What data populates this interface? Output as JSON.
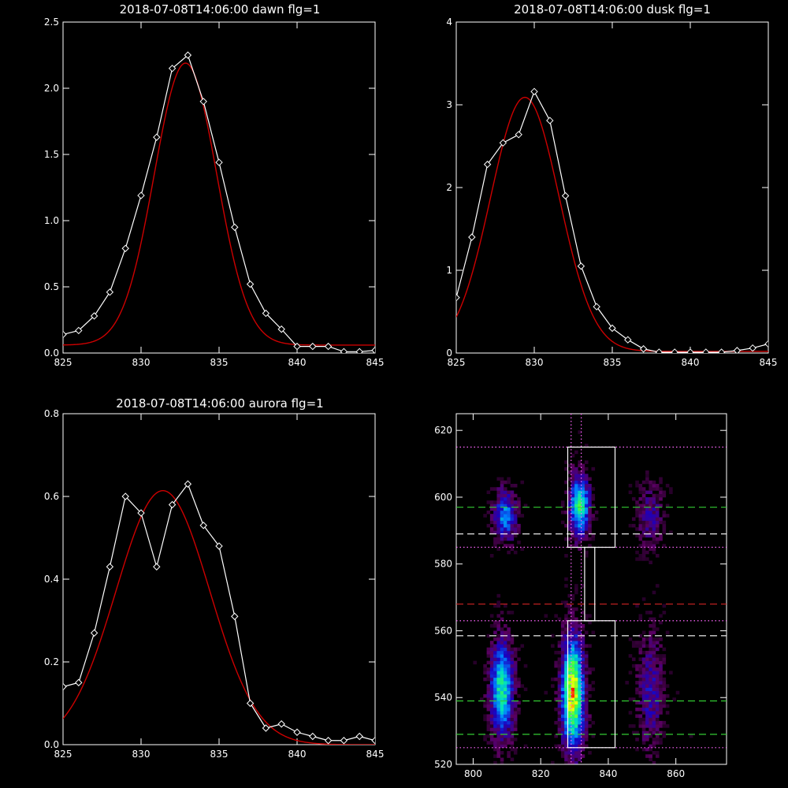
{
  "chart_data": [
    {
      "type": "line",
      "title": "2018-07-08T14:06:00 dawn flg=1",
      "xlim": [
        825,
        845
      ],
      "ylim": [
        0,
        2.5
      ],
      "xticks": [
        "825",
        "830",
        "835",
        "840",
        "845"
      ],
      "xtick_values": [
        825,
        830,
        835,
        840,
        845
      ],
      "yticks": [
        "0.0",
        "0.5",
        "1.0",
        "1.5",
        "2.0",
        "2.5"
      ],
      "ytick_values": [
        0,
        0.5,
        1.0,
        1.5,
        2.0,
        2.5
      ],
      "series": [
        {
          "color": "#ffffff",
          "marker": "diamond",
          "x": [
            825,
            826,
            827,
            828,
            829,
            830,
            831,
            832,
            833,
            834,
            835,
            836,
            837,
            838,
            839,
            840,
            841,
            842,
            843,
            844,
            845
          ],
          "y": [
            0.14,
            0.17,
            0.28,
            0.46,
            0.79,
            1.19,
            1.63,
            2.15,
            2.25,
            1.9,
            1.44,
            0.95,
            0.52,
            0.3,
            0.18,
            0.05,
            0.05,
            0.05,
            0.01,
            0.01,
            0.02
          ]
        },
        {
          "color": "#cc0000",
          "fit": "gaussian",
          "amplitude": 2.13,
          "center": 832.85,
          "sigma": 2.0,
          "offset": 0.06
        }
      ]
    },
    {
      "type": "line",
      "title": "2018-07-08T14:06:00 dusk flg=1",
      "xlim": [
        825,
        845
      ],
      "ylim": [
        0,
        4
      ],
      "xticks": [
        "825",
        "830",
        "835",
        "840",
        "845"
      ],
      "xtick_values": [
        825,
        830,
        835,
        840,
        845
      ],
      "yticks": [
        "0",
        "1",
        "2",
        "3",
        "4"
      ],
      "ytick_values": [
        0,
        1,
        2,
        3,
        4
      ],
      "series": [
        {
          "color": "#ffffff",
          "marker": "diamond",
          "x": [
            825,
            826,
            827,
            828,
            829,
            830,
            831,
            832,
            833,
            834,
            835,
            836,
            837,
            838,
            839,
            840,
            841,
            842,
            843,
            844,
            845
          ],
          "y": [
            0.67,
            1.4,
            2.28,
            2.54,
            2.64,
            3.16,
            2.81,
            1.9,
            1.05,
            0.56,
            0.3,
            0.16,
            0.05,
            0.01,
            0.01,
            0.01,
            0.01,
            0.01,
            0.03,
            0.06,
            0.11
          ]
        },
        {
          "color": "#cc0000",
          "fit": "gaussian",
          "amplitude": 3.07,
          "center": 829.4,
          "sigma": 2.2,
          "offset": 0.02
        }
      ]
    },
    {
      "type": "line",
      "title": "2018-07-08T14:06:00 aurora flg=1",
      "xlim": [
        825,
        845
      ],
      "ylim": [
        0,
        0.8
      ],
      "xticks": [
        "825",
        "830",
        "835",
        "840",
        "845"
      ],
      "xtick_values": [
        825,
        830,
        835,
        840,
        845
      ],
      "yticks": [
        "0.0",
        "0.2",
        "0.4",
        "0.6",
        "0.8"
      ],
      "ytick_values": [
        0,
        0.2,
        0.4,
        0.6,
        0.8
      ],
      "series": [
        {
          "color": "#ffffff",
          "marker": "diamond",
          "x": [
            825,
            826,
            827,
            828,
            829,
            830,
            831,
            832,
            833,
            834,
            835,
            836,
            837,
            838,
            839,
            840,
            841,
            842,
            843,
            844,
            845
          ],
          "y": [
            0.14,
            0.15,
            0.27,
            0.43,
            0.6,
            0.56,
            0.43,
            0.58,
            0.63,
            0.53,
            0.48,
            0.31,
            0.1,
            0.04,
            0.05,
            0.03,
            0.02,
            0.01,
            0.01,
            0.02,
            0.01
          ]
        },
        {
          "color": "#cc0000",
          "fit": "gaussian",
          "amplitude": 0.614,
          "center": 831.4,
          "sigma": 3.0,
          "offset": 0
        }
      ]
    },
    {
      "type": "heatmap",
      "xlim": [
        795,
        875
      ],
      "ylim": [
        520,
        625
      ],
      "xticks": [
        "800",
        "820",
        "840",
        "860"
      ],
      "xtick_values": [
        800,
        820,
        840,
        860
      ],
      "yticks": [
        "520",
        "540",
        "560",
        "580",
        "600",
        "620"
      ],
      "ytick_values": [
        520,
        540,
        560,
        580,
        600,
        620
      ],
      "colormap": [
        "#000000",
        "#5a0060",
        "#1a00c0",
        "#0080ff",
        "#00e0c0",
        "#40ff40",
        "#ffff00",
        "#ff0000"
      ],
      "blobs": [
        {
          "x": 809,
          "y": 594,
          "sx": 2.2,
          "sy": 5.0,
          "amp": 0.45
        },
        {
          "x": 831,
          "y": 597,
          "sx": 2.0,
          "sy": 6.0,
          "amp": 0.65
        },
        {
          "x": 852,
          "y": 594,
          "sx": 2.5,
          "sy": 6.0,
          "amp": 0.22
        },
        {
          "x": 808,
          "y": 542,
          "sx": 2.3,
          "sy": 9.5,
          "amp": 0.62
        },
        {
          "x": 829,
          "y": 541,
          "sx": 2.2,
          "sy": 11.0,
          "amp": 0.9
        },
        {
          "x": 852,
          "y": 541,
          "sx": 2.5,
          "sy": 11.0,
          "amp": 0.25
        }
      ],
      "hlines": [
        {
          "y": 615,
          "color": "#ff66ff",
          "style": "dotted"
        },
        {
          "y": 597,
          "color": "#33cc33",
          "style": "dashed"
        },
        {
          "y": 589,
          "color": "#ffffff",
          "style": "dashed"
        },
        {
          "y": 585,
          "color": "#ff66ff",
          "style": "dotted"
        },
        {
          "y": 568,
          "color": "#cc2222",
          "style": "dashed"
        },
        {
          "y": 563,
          "color": "#ff66ff",
          "style": "dotted"
        },
        {
          "y": 558.5,
          "color": "#ffffff",
          "style": "dashed"
        },
        {
          "y": 539,
          "color": "#33cc33",
          "style": "dashed"
        },
        {
          "y": 529,
          "color": "#33cc33",
          "style": "dashed"
        },
        {
          "y": 525,
          "color": "#ff66ff",
          "style": "dotted"
        }
      ],
      "vlines": [
        {
          "x": 829,
          "color": "#ff66ff",
          "style": "dotted"
        },
        {
          "x": 832,
          "color": "#ff66ff",
          "style": "dotted"
        }
      ],
      "boxes": [
        {
          "x0": 828,
          "x1": 842,
          "y0": 585,
          "y1": 615
        },
        {
          "x0": 828,
          "x1": 842,
          "y0": 525,
          "y1": 563
        },
        {
          "x0": 833,
          "x1": 836,
          "y0": 563,
          "y1": 585
        }
      ]
    }
  ]
}
